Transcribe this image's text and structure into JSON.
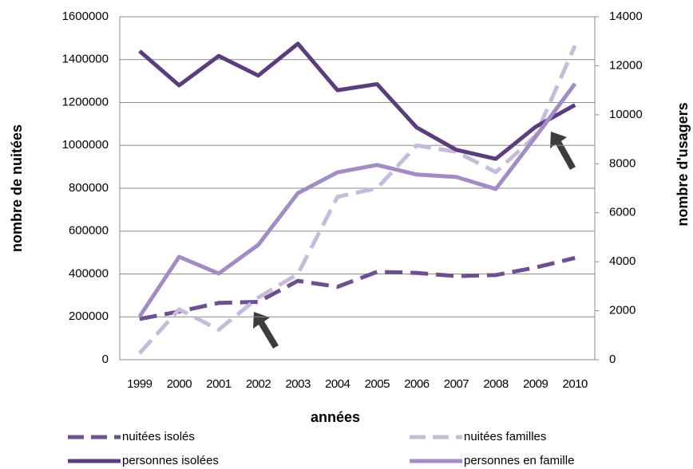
{
  "chart_data": {
    "type": "line",
    "x_label": "années",
    "y_label": "nombre de nuitées",
    "y2_label": "nombre d'usagers",
    "categories": [
      "1999",
      "2000",
      "2001",
      "2002",
      "2003",
      "2004",
      "2005",
      "2006",
      "2007",
      "2008",
      "2009",
      "2010"
    ],
    "ylim": [
      0,
      1600000
    ],
    "yticks": [
      0,
      200000,
      400000,
      600000,
      800000,
      1000000,
      1200000,
      1400000,
      1600000
    ],
    "y2lim": [
      0,
      14000
    ],
    "y2ticks": [
      0,
      2000,
      4000,
      6000,
      8000,
      10000,
      12000,
      14000
    ],
    "grid": true,
    "legend": "bottom",
    "series": [
      {
        "name": "nuitées isolés",
        "color": "#6e5091",
        "dashed": true,
        "values": [
          190000,
          225000,
          265000,
          270000,
          368000,
          340000,
          410000,
          405000,
          390000,
          395000,
          430000,
          475000
        ]
      },
      {
        "name": "nuitées familles",
        "color": "#c6bcd9",
        "dashed": true,
        "values": [
          30000,
          235000,
          140000,
          290000,
          400000,
          760000,
          800000,
          1000000,
          970000,
          875000,
          1045000,
          1465000
        ]
      },
      {
        "name": "personnes isolées",
        "color": "#5a3d7c",
        "axis": "y2",
        "values": [
          12600,
          11200,
          12400,
          11600,
          12900,
          11000,
          11250,
          9480,
          8570,
          8200,
          9500,
          10400
        ]
      },
      {
        "name": "personnes en famille",
        "color": "#a28cc4",
        "axis": "y2",
        "values": [
          1760,
          4200,
          3520,
          4690,
          6800,
          7650,
          7950,
          7560,
          7460,
          6970,
          9090,
          11270
        ]
      }
    ]
  }
}
